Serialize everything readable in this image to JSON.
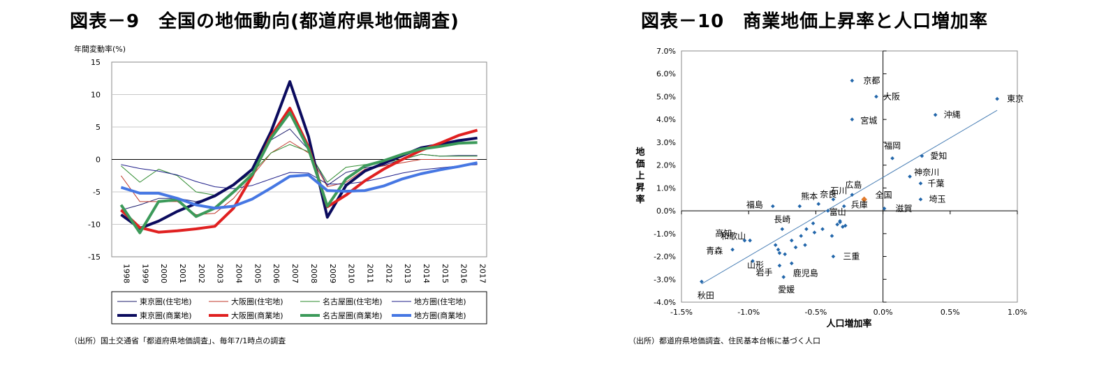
{
  "left_title": "図表－9　全国の地価動向(都道府県地価調査)",
  "right_title": "図表－10　商業地価上昇率と人口増加率",
  "left_source": "（出所）国土交通省「都道府県地価調査」、毎年7/1時点の調査",
  "right_source": "（出所）都道府県地価調査、住民基本台帳に基づく人口",
  "chart_data": [
    {
      "type": "line",
      "title": "",
      "ylabel": "年間変動率(%)",
      "xlabel": "",
      "ylim": [
        -15,
        15
      ],
      "yticks": [
        15,
        10,
        5,
        0,
        -5,
        -10,
        -15
      ],
      "grid": true,
      "legend_position": "bottom",
      "categories": [
        "1998",
        "1999",
        "2000",
        "2001",
        "2002",
        "2003",
        "2004",
        "2005",
        "2006",
        "2007",
        "2008",
        "2009",
        "2010",
        "2011",
        "2012",
        "2013",
        "2014",
        "2015",
        "2016",
        "2017"
      ],
      "series": [
        {
          "name": "東京圏(住宅地)",
          "color": "#1f1f6e",
          "width": 1,
          "values": [
            -7.8,
            -7.0,
            -6.0,
            -6.0,
            -6.5,
            -5.8,
            -4.0,
            -1.5,
            3.0,
            4.7,
            1.5,
            -4.0,
            -2.0,
            -1.3,
            -0.9,
            0.0,
            0.8,
            0.5,
            0.6,
            0.6
          ]
        },
        {
          "name": "大阪圏(住宅地)",
          "color": "#c0392b",
          "width": 1,
          "values": [
            -2.5,
            -6.5,
            -6.5,
            -6.5,
            -8.5,
            -8.3,
            -6.0,
            -2.5,
            1.0,
            2.8,
            1.0,
            -4.2,
            -3.5,
            -1.5,
            -1.0,
            -0.5,
            0.0,
            0.0,
            0.0,
            0.0
          ]
        },
        {
          "name": "名古屋圏(住宅地)",
          "color": "#2e8b2e",
          "width": 1,
          "values": [
            -1.0,
            -3.5,
            -1.5,
            -2.5,
            -5.0,
            -5.5,
            -4.0,
            -2.0,
            1.0,
            2.3,
            1.2,
            -3.5,
            -1.2,
            -0.8,
            -0.5,
            0.0,
            0.8,
            0.5,
            0.5,
            0.5
          ]
        },
        {
          "name": "地方圏(住宅地)",
          "color": "#1f1f8a",
          "width": 1,
          "values": [
            -0.8,
            -1.4,
            -1.8,
            -2.4,
            -3.4,
            -4.2,
            -4.5,
            -4.0,
            -3.0,
            -2.0,
            -2.1,
            -3.8,
            -3.8,
            -3.4,
            -2.8,
            -2.1,
            -1.6,
            -1.3,
            -1.0,
            -0.8
          ]
        },
        {
          "name": "東京圏(商業地)",
          "color": "#0b0b5e",
          "width": 4,
          "values": [
            -8.5,
            -10.6,
            -9.5,
            -8.0,
            -6.8,
            -5.6,
            -3.9,
            -1.5,
            4.3,
            12.0,
            3.5,
            -8.9,
            -4.0,
            -1.8,
            -0.6,
            0.6,
            1.8,
            2.3,
            2.9,
            3.3
          ]
        },
        {
          "name": "大阪圏(商業地)",
          "color": "#e02020",
          "width": 4,
          "values": [
            -7.8,
            -10.5,
            -11.2,
            -11.0,
            -10.7,
            -10.3,
            -7.5,
            -2.5,
            3.6,
            7.9,
            1.9,
            -7.3,
            -5.5,
            -3.3,
            -1.5,
            0.0,
            1.4,
            2.5,
            3.7,
            4.5
          ]
        },
        {
          "name": "名古屋圏(商業地)",
          "color": "#3c9a5a",
          "width": 4,
          "values": [
            -7.0,
            -11.3,
            -6.5,
            -6.2,
            -8.8,
            -7.5,
            -5.0,
            -2.3,
            3.3,
            7.2,
            1.6,
            -7.2,
            -3.0,
            -1.0,
            -0.2,
            0.8,
            1.6,
            2.0,
            2.5,
            2.6
          ]
        },
        {
          "name": "地方圏(商業地)",
          "color": "#4677e3",
          "width": 4,
          "values": [
            -4.3,
            -5.2,
            -5.2,
            -6.0,
            -7.0,
            -7.5,
            -7.2,
            -6.1,
            -4.4,
            -2.6,
            -2.4,
            -4.8,
            -4.9,
            -4.8,
            -4.1,
            -3.0,
            -2.2,
            -1.6,
            -1.1,
            -0.5
          ]
        }
      ]
    },
    {
      "type": "scatter",
      "title": "",
      "xlabel": "人口増加率",
      "ylabel": "地価上昇率",
      "xlim": [
        -0.015,
        0.01
      ],
      "ylim": [
        -0.04,
        0.07
      ],
      "xticks": [
        "-1.5%",
        "-1.0%",
        "-0.5%",
        "0.0%",
        "0.5%",
        "1.0%"
      ],
      "xtick_values": [
        -0.015,
        -0.01,
        -0.005,
        0.0,
        0.005,
        0.01
      ],
      "yticks": [
        "7.0%",
        "6.0%",
        "5.0%",
        "4.0%",
        "3.0%",
        "2.0%",
        "1.0%",
        "0.0%",
        "-1.0%",
        "-2.0%",
        "-3.0%",
        "-4.0%"
      ],
      "ytick_values": [
        0.07,
        0.06,
        0.05,
        0.04,
        0.03,
        0.02,
        0.01,
        0.0,
        -0.01,
        -0.02,
        -0.03,
        -0.04
      ],
      "grid": false,
      "point_color": "#2266aa",
      "highlight_color": "#e0792a",
      "trendline": [
        [
          -0.0135,
          -0.032
        ],
        [
          0.0085,
          0.044
        ]
      ],
      "points": [
        {
          "label": "京都",
          "x": -0.0023,
          "y": 0.057
        },
        {
          "label": "大阪",
          "x": -0.0005,
          "y": 0.05
        },
        {
          "label": "東京",
          "x": 0.0085,
          "y": 0.049
        },
        {
          "label": "沖縄",
          "x": 0.0039,
          "y": 0.042
        },
        {
          "label": "宮城",
          "x": -0.0023,
          "y": 0.04
        },
        {
          "label": "愛知",
          "x": 0.0029,
          "y": 0.024
        },
        {
          "label": "福岡",
          "x": 0.0007,
          "y": 0.023
        },
        {
          "label": "神奈川",
          "x": 0.002,
          "y": 0.015
        },
        {
          "label": "千葉",
          "x": 0.0028,
          "y": 0.012
        },
        {
          "label": "広島",
          "x": -0.0023,
          "y": 0.007
        },
        {
          "label": "石川",
          "x": -0.0037,
          "y": 0.005
        },
        {
          "label": "全国",
          "x": -0.0014,
          "y": 0.005,
          "highlight": true
        },
        {
          "label": "埼玉",
          "x": 0.0028,
          "y": 0.005
        },
        {
          "label": "兵庫",
          "x": -0.0029,
          "y": 0.002
        },
        {
          "label": "滋賀",
          "x": 0.0001,
          "y": 0.001
        },
        {
          "label": "熊本",
          "x": -0.0062,
          "y": 0.002
        },
        {
          "label": "奈良",
          "x": -0.0048,
          "y": 0.003
        },
        {
          "label": "福島",
          "x": -0.0082,
          "y": 0.002
        },
        {
          "label": "富山",
          "x": -0.0041,
          "y": 0.0
        },
        {
          "label": "長崎",
          "x": -0.0075,
          "y": -0.008
        },
        {
          "label": "和歌山",
          "x": -0.0099,
          "y": -0.013
        },
        {
          "label": "高知",
          "x": -0.0103,
          "y": -0.013
        },
        {
          "label": "青森",
          "x": -0.0112,
          "y": -0.017
        },
        {
          "label": "山形",
          "x": -0.0097,
          "y": -0.022
        },
        {
          "label": "三重",
          "x": -0.0037,
          "y": -0.02
        },
        {
          "label": "岩手",
          "x": -0.0077,
          "y": -0.024
        },
        {
          "label": "鹿児島",
          "x": -0.0068,
          "y": -0.023
        },
        {
          "label": "愛媛",
          "x": -0.0074,
          "y": -0.029
        },
        {
          "label": "秋田",
          "x": -0.0135,
          "y": -0.031
        },
        {
          "label": "",
          "x": -0.0032,
          "y": -0.005
        },
        {
          "label": "",
          "x": -0.003,
          "y": -0.007
        },
        {
          "label": "",
          "x": -0.0034,
          "y": -0.006
        },
        {
          "label": "",
          "x": -0.0032,
          "y": -0.0045
        },
        {
          "label": "",
          "x": -0.0028,
          "y": -0.0065
        },
        {
          "label": "",
          "x": -0.0038,
          "y": -0.011
        },
        {
          "label": "",
          "x": -0.0045,
          "y": -0.008
        },
        {
          "label": "",
          "x": -0.0051,
          "y": -0.0095
        },
        {
          "label": "",
          "x": -0.0052,
          "y": -0.0055
        },
        {
          "label": "",
          "x": -0.0057,
          "y": -0.008
        },
        {
          "label": "",
          "x": -0.0061,
          "y": -0.011
        },
        {
          "label": "",
          "x": -0.0058,
          "y": -0.015
        },
        {
          "label": "",
          "x": -0.0065,
          "y": -0.016
        },
        {
          "label": "",
          "x": -0.0068,
          "y": -0.013
        },
        {
          "label": "",
          "x": -0.0073,
          "y": -0.019
        },
        {
          "label": "",
          "x": -0.0078,
          "y": -0.017
        },
        {
          "label": "",
          "x": -0.008,
          "y": -0.015
        },
        {
          "label": "",
          "x": -0.0077,
          "y": -0.0185
        }
      ]
    }
  ]
}
